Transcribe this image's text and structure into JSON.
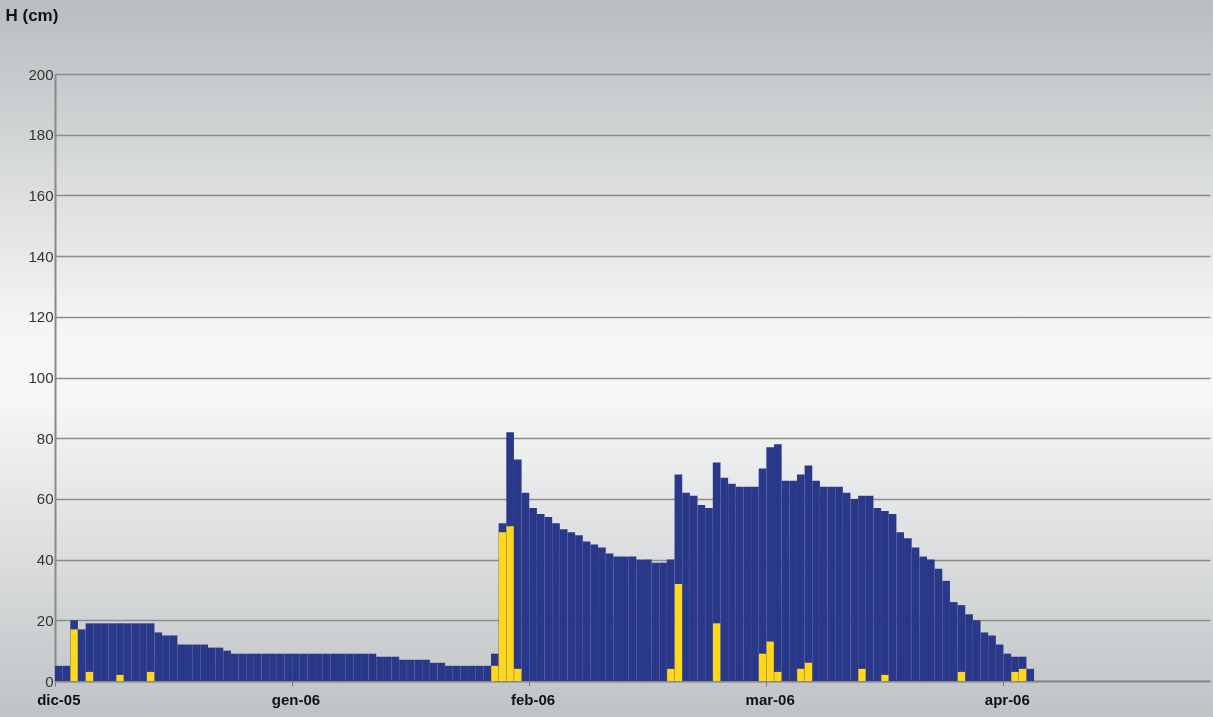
{
  "chart_data": {
    "type": "bar",
    "ylabel": "H (cm)",
    "categories": [
      "dic-05",
      null,
      null,
      null,
      null,
      null,
      null,
      null,
      null,
      null,
      null,
      null,
      null,
      null,
      null,
      null,
      null,
      null,
      null,
      null,
      null,
      null,
      null,
      null,
      null,
      null,
      null,
      null,
      null,
      null,
      null,
      "gen-06",
      null,
      null,
      null,
      null,
      null,
      null,
      null,
      null,
      null,
      null,
      null,
      null,
      null,
      null,
      null,
      null,
      null,
      null,
      null,
      null,
      null,
      null,
      null,
      null,
      null,
      null,
      null,
      null,
      null,
      null,
      "feb-06",
      null,
      null,
      null,
      null,
      null,
      null,
      null,
      null,
      null,
      null,
      null,
      null,
      null,
      null,
      null,
      null,
      null,
      null,
      null,
      null,
      null,
      null,
      null,
      null,
      null,
      null,
      null,
      null,
      null,
      null,
      "mar-06",
      null,
      null,
      null,
      null,
      null,
      null,
      null,
      null,
      null,
      null,
      null,
      null,
      null,
      null,
      null,
      null,
      null,
      null,
      null,
      null,
      null,
      null,
      null,
      null,
      null,
      null,
      null,
      null,
      null,
      null,
      "apr-06",
      null,
      null,
      null,
      null,
      null,
      null,
      null,
      null,
      null,
      null,
      null,
      null,
      null,
      null,
      null,
      null,
      null,
      null,
      null,
      null,
      null,
      null,
      null,
      null,
      null,
      null
    ],
    "series": [
      {
        "color": "#2a3889",
        "values": [
          5,
          5,
          20,
          17,
          19,
          19,
          19,
          19,
          19,
          19,
          19,
          19,
          19,
          16,
          15,
          15,
          12,
          12,
          12,
          12,
          11,
          11,
          10,
          9,
          9,
          9,
          9,
          9,
          9,
          9,
          9,
          9,
          9,
          9,
          9,
          9,
          9,
          9,
          9,
          9,
          9,
          9,
          8,
          8,
          8,
          7,
          7,
          7,
          7,
          6,
          6,
          5,
          5,
          5,
          5,
          5,
          5,
          9,
          52,
          82,
          73,
          62,
          57,
          55,
          54,
          52,
          50,
          49,
          48,
          46,
          45,
          44,
          42,
          41,
          41,
          41,
          40,
          40,
          39,
          39,
          40,
          68,
          62,
          61,
          58,
          57,
          72,
          67,
          65,
          64,
          64,
          64,
          70,
          77,
          78,
          66,
          66,
          68,
          71,
          66,
          64,
          64,
          64,
          62,
          60,
          61,
          61,
          57,
          56,
          55,
          49,
          47,
          44,
          41,
          40,
          37,
          33,
          26,
          25,
          22,
          20,
          16,
          15,
          12,
          9,
          8,
          8,
          4,
          null,
          null,
          null,
          null,
          null,
          null,
          null,
          null,
          null,
          null,
          null,
          null,
          null,
          null,
          null,
          null,
          null,
          null,
          null,
          null,
          null,
          null,
          null
        ]
      },
      {
        "color": "#ffd81c",
        "values": [
          null,
          null,
          17,
          null,
          3,
          null,
          null,
          null,
          2,
          null,
          null,
          null,
          3,
          null,
          null,
          null,
          null,
          null,
          null,
          null,
          null,
          null,
          null,
          null,
          null,
          null,
          null,
          null,
          null,
          null,
          null,
          null,
          null,
          null,
          null,
          null,
          null,
          null,
          null,
          null,
          null,
          null,
          null,
          null,
          null,
          null,
          null,
          null,
          null,
          null,
          null,
          null,
          null,
          null,
          null,
          null,
          null,
          5,
          49,
          51,
          4,
          null,
          null,
          null,
          null,
          null,
          null,
          null,
          null,
          null,
          null,
          null,
          null,
          null,
          null,
          null,
          null,
          null,
          null,
          null,
          4,
          32,
          null,
          null,
          null,
          null,
          19,
          null,
          null,
          null,
          null,
          null,
          9,
          13,
          3,
          null,
          null,
          4,
          6,
          null,
          null,
          null,
          null,
          null,
          null,
          4,
          null,
          null,
          2,
          null,
          null,
          null,
          null,
          null,
          null,
          null,
          null,
          null,
          3,
          null,
          null,
          null,
          null,
          null,
          null,
          3,
          4,
          null,
          null,
          null,
          null,
          null,
          null,
          null,
          null,
          null,
          null,
          null,
          null,
          null,
          null,
          null,
          null,
          null,
          null,
          null,
          null,
          null,
          null,
          null,
          null
        ]
      }
    ],
    "ylim": [
      0,
      200
    ],
    "yticks": [
      0,
      20,
      40,
      60,
      80,
      100,
      120,
      140,
      160,
      180,
      200
    ],
    "grid": "y"
  }
}
